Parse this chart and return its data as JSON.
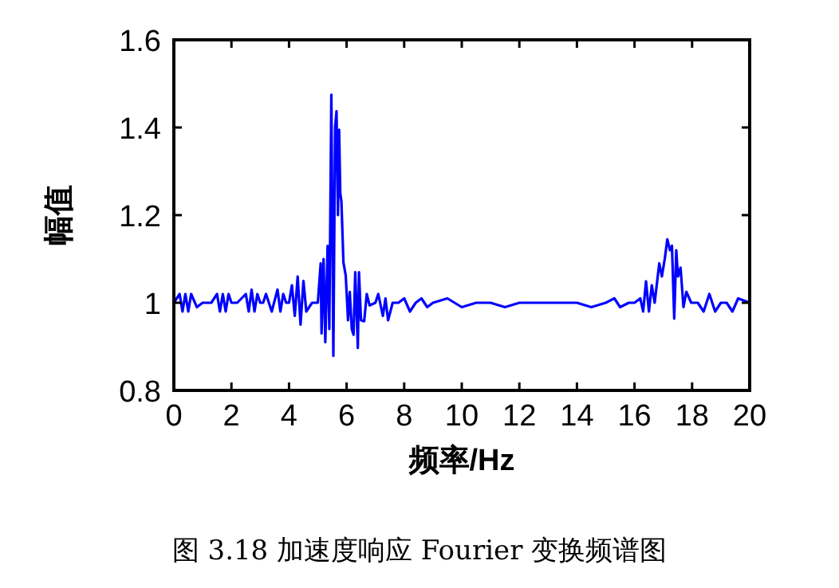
{
  "chart_data": {
    "type": "line",
    "xlabel": "频率/Hz",
    "ylabel": "幅值",
    "annotations": [
      "图 3.18  加速度响应 Fourier 变换频谱图"
    ],
    "xlim": [
      0,
      20
    ],
    "ylim": [
      0.8,
      1.6
    ],
    "xticks": [
      0,
      2,
      4,
      6,
      8,
      10,
      12,
      14,
      16,
      18,
      20
    ],
    "yticks": [
      0.8,
      1,
      1.2,
      1.4,
      1.6
    ],
    "grid": false,
    "series": [
      {
        "color": "#0000ff",
        "x": [
          0,
          0.2,
          0.3,
          0.4,
          0.5,
          0.6,
          0.8,
          1.0,
          1.3,
          1.5,
          1.6,
          1.7,
          1.8,
          1.9,
          2.0,
          2.2,
          2.5,
          2.6,
          2.7,
          2.8,
          2.9,
          3.0,
          3.1,
          3.2,
          3.4,
          3.6,
          3.7,
          3.8,
          3.9,
          4.0,
          4.1,
          4.2,
          4.3,
          4.4,
          4.5,
          4.6,
          4.8,
          5.0,
          5.1,
          5.13,
          5.2,
          5.26,
          5.34,
          5.4,
          5.47,
          5.54,
          5.6,
          5.65,
          5.7,
          5.74,
          5.78,
          5.82,
          5.89,
          5.97,
          6.05,
          6.11,
          6.18,
          6.24,
          6.3,
          6.39,
          6.43,
          6.5,
          6.61,
          6.7,
          6.8,
          7.0,
          7.1,
          7.26,
          7.35,
          7.44,
          7.6,
          7.8,
          8.0,
          8.2,
          8.4,
          8.6,
          8.8,
          9.0,
          9.5,
          10.0,
          10.5,
          11.0,
          11.5,
          12.0,
          13.0,
          14.0,
          14.5,
          15.0,
          15.3,
          15.5,
          15.8,
          16.0,
          16.2,
          16.3,
          16.4,
          16.5,
          16.6,
          16.7,
          16.86,
          16.95,
          17.05,
          17.14,
          17.23,
          17.3,
          17.38,
          17.45,
          17.51,
          17.6,
          17.7,
          17.8,
          17.97,
          18.2,
          18.4,
          18.6,
          18.8,
          19.0,
          19.2,
          19.4,
          19.6,
          20.0
        ],
        "values": [
          1.0,
          1.02,
          0.98,
          1.02,
          0.98,
          1.02,
          0.99,
          1.0,
          1.0,
          1.02,
          0.98,
          1.02,
          0.98,
          1.02,
          1.0,
          1.0,
          1.02,
          0.98,
          1.03,
          0.98,
          1.02,
          1.0,
          1.0,
          1.02,
          0.98,
          1.03,
          0.98,
          1.02,
          1.0,
          1.0,
          1.04,
          0.97,
          1.06,
          0.95,
          1.05,
          0.98,
          1.0,
          1.0,
          1.09,
          0.93,
          1.1,
          0.91,
          1.13,
          0.94,
          1.475,
          0.879,
          1.4,
          1.437,
          1.2,
          1.395,
          1.25,
          1.231,
          1.092,
          1.062,
          0.96,
          1.025,
          0.94,
          0.927,
          1.07,
          0.897,
          1.07,
          0.96,
          0.958,
          1.02,
          0.994,
          1.0,
          1.02,
          0.97,
          1.01,
          0.96,
          1.0,
          1.0,
          1.01,
          0.98,
          1.0,
          1.01,
          0.99,
          1.0,
          1.01,
          0.99,
          1.0,
          1.0,
          0.99,
          1.0,
          1.0,
          1.0,
          0.99,
          1.0,
          1.01,
          0.99,
          1.0,
          1.0,
          1.01,
          0.98,
          1.049,
          0.98,
          1.04,
          1.0,
          1.09,
          1.06,
          1.1,
          1.145,
          1.12,
          1.13,
          0.964,
          1.12,
          1.06,
          1.08,
          0.99,
          1.025,
          1.0,
          1.0,
          0.98,
          1.02,
          0.98,
          1.0,
          1.0,
          0.98,
          1.01,
          1.0
        ]
      }
    ]
  }
}
